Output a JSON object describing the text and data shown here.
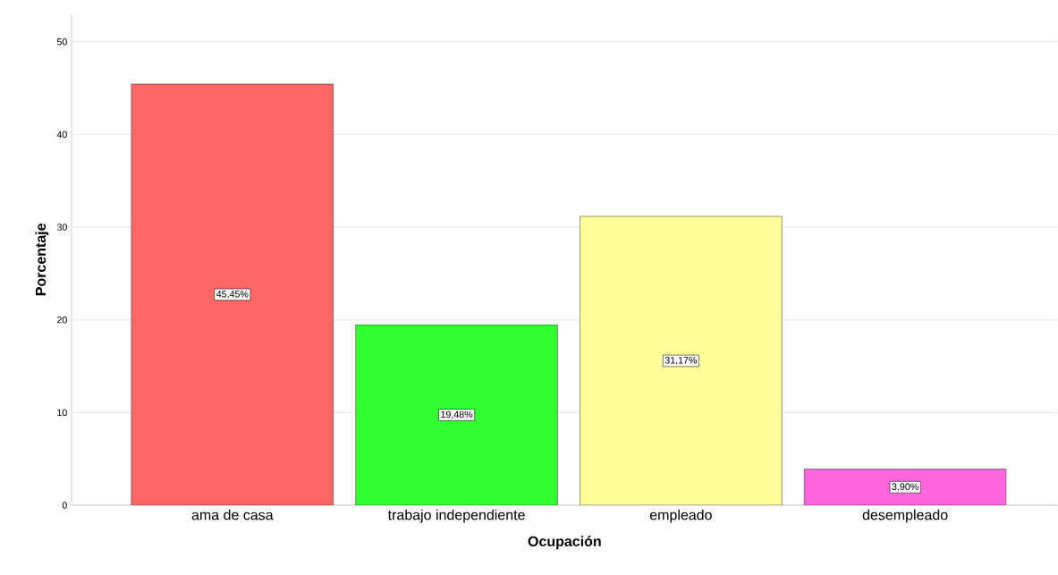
{
  "chart_data": {
    "type": "bar",
    "xlabel": "Ocupación",
    "ylabel": "Porcentaje",
    "categories": [
      "ama de casa",
      "trabajo independiente",
      "empleado",
      "desempleado"
    ],
    "values": [
      45.45,
      19.48,
      31.17,
      3.9
    ],
    "colors": [
      "#ff6666",
      "#33ff33",
      "#ffff99",
      "#ff66dd"
    ],
    "value_labels": [
      "45,45%",
      "19,48%",
      "31,17%",
      "3,90%"
    ],
    "ylim": [
      0,
      53
    ],
    "yticks": [
      0,
      10,
      20,
      30,
      40,
      50
    ],
    "grid": "y"
  }
}
